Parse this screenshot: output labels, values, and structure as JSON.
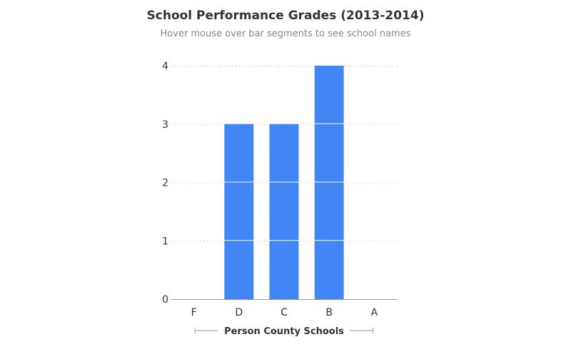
{
  "chart_data": {
    "type": "bar",
    "title": "School Performance Grades (2013-2014)",
    "subtitle": "Hover mouse over bar segments to see school names",
    "xlabel": "Person County Schools",
    "ylabel": "",
    "categories": [
      "F",
      "D",
      "C",
      "B",
      "A"
    ],
    "values": [
      0,
      3,
      3,
      4,
      0
    ],
    "stacked_segments_of": 1,
    "ylim": [
      0,
      4
    ],
    "yticks": [
      0,
      1,
      2,
      3,
      4
    ],
    "grid": true,
    "colors": {
      "bar": "#4285f4",
      "text": "#333333",
      "subtitle": "#888888",
      "grid": "#bbbbbb",
      "axis": "#999999"
    }
  }
}
